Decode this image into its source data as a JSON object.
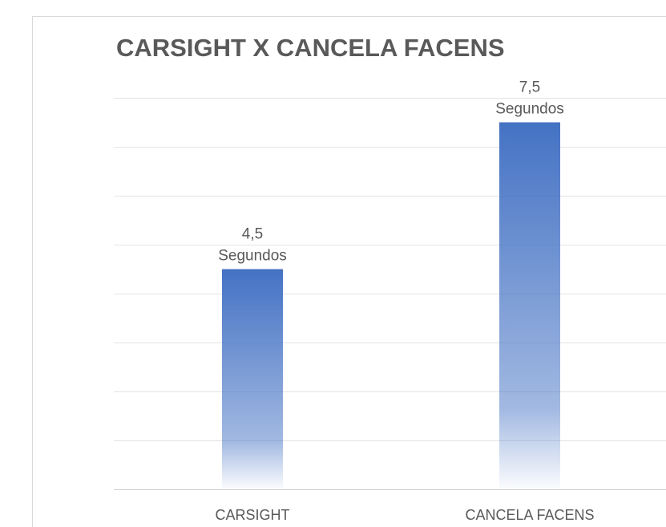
{
  "chart_data": {
    "type": "bar",
    "title": "CARSIGHT X CANCELA FACENS",
    "categories": [
      "CARSIGHT",
      "CANCELA FACENS"
    ],
    "values": [
      4.5,
      7.5
    ],
    "value_labels": [
      "4,5\nSegundos",
      "7,5\nSegundos"
    ],
    "color": "#4472c4",
    "ylim": [
      0,
      8
    ],
    "yticks": [
      0,
      1,
      2,
      3,
      4,
      5,
      6,
      7,
      8
    ],
    "grid": true
  }
}
